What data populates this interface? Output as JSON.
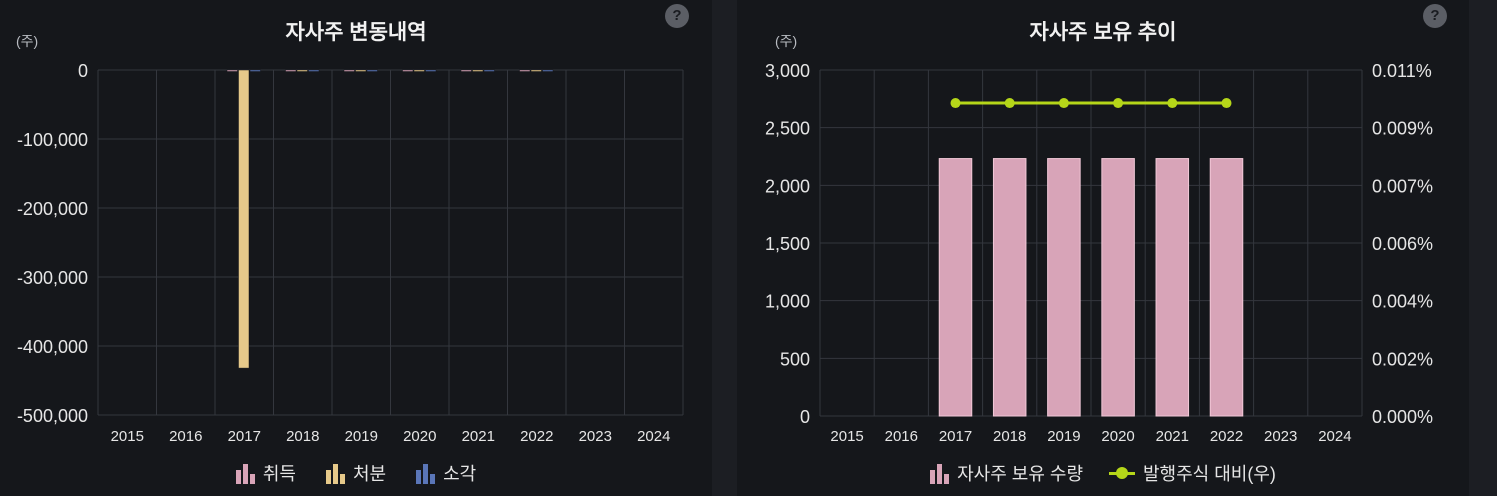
{
  "left": {
    "title": "자사주 변동내역",
    "unit": "(주)",
    "help": "?",
    "legend": [
      {
        "label": "취득",
        "color": "#d8a4b8"
      },
      {
        "label": "처분",
        "color": "#e6c98a"
      },
      {
        "label": "소각",
        "color": "#5a76b8"
      }
    ]
  },
  "right": {
    "title": "자사주 보유 추이",
    "unit": "(주)",
    "help": "?",
    "legend": [
      {
        "label": "자사주 보유 수량",
        "color": "#d8a4b8"
      },
      {
        "label": "발행주식 대비(우)",
        "color": "#b5d619"
      }
    ]
  },
  "chart_data": [
    {
      "type": "bar",
      "title": "자사주 변동내역",
      "ylabel": "(주)",
      "categories": [
        "2015",
        "2016",
        "2017",
        "2018",
        "2019",
        "2020",
        "2021",
        "2022",
        "2023",
        "2024"
      ],
      "ylim": [
        -500000,
        0
      ],
      "yticks": [
        0,
        -100000,
        -200000,
        -300000,
        -400000,
        -500000
      ],
      "ytick_labels": [
        "0",
        "-100,000",
        "-200,000",
        "-300,000",
        "-400,000",
        "-500,000"
      ],
      "grid": true,
      "legend_position": "bottom",
      "series": [
        {
          "name": "취득",
          "color": "#d8a4b8",
          "values": [
            null,
            null,
            0,
            0,
            0,
            0,
            0,
            0,
            null,
            null
          ]
        },
        {
          "name": "처분",
          "color": "#e6c98a",
          "values": [
            null,
            null,
            -432000,
            0,
            0,
            0,
            0,
            0,
            null,
            null
          ]
        },
        {
          "name": "소각",
          "color": "#5a76b8",
          "values": [
            null,
            null,
            0,
            0,
            0,
            0,
            0,
            0,
            null,
            null
          ]
        }
      ]
    },
    {
      "type": "bar",
      "title": "자사주 보유 추이",
      "ylabel": "(주)",
      "categories": [
        "2015",
        "2016",
        "2017",
        "2018",
        "2019",
        "2020",
        "2021",
        "2022",
        "2023",
        "2024"
      ],
      "ylim": [
        0,
        3000
      ],
      "yticks": [
        0,
        500,
        1000,
        1500,
        2000,
        2500,
        3000
      ],
      "ytick_labels": [
        "0",
        "500",
        "1,000",
        "1,500",
        "2,000",
        "2,500",
        "3,000"
      ],
      "y2lim": [
        0,
        0.011
      ],
      "y2tick_labels": [
        "0.000%",
        "0.002%",
        "0.004%",
        "0.006%",
        "0.007%",
        "0.009%",
        "0.011%"
      ],
      "grid": true,
      "legend_position": "bottom",
      "series": [
        {
          "name": "자사주 보유 수량",
          "type": "bar",
          "axis": "left",
          "color": "#d8a4b8",
          "values": [
            null,
            null,
            2232,
            2232,
            2232,
            2232,
            2232,
            2232,
            null,
            null
          ]
        },
        {
          "name": "발행주식 대비(우)",
          "type": "line",
          "axis": "right",
          "color": "#b5d619",
          "values": [
            null,
            null,
            0.00995,
            0.00995,
            0.00995,
            0.00995,
            0.00995,
            0.00995,
            null,
            null
          ]
        }
      ]
    }
  ]
}
